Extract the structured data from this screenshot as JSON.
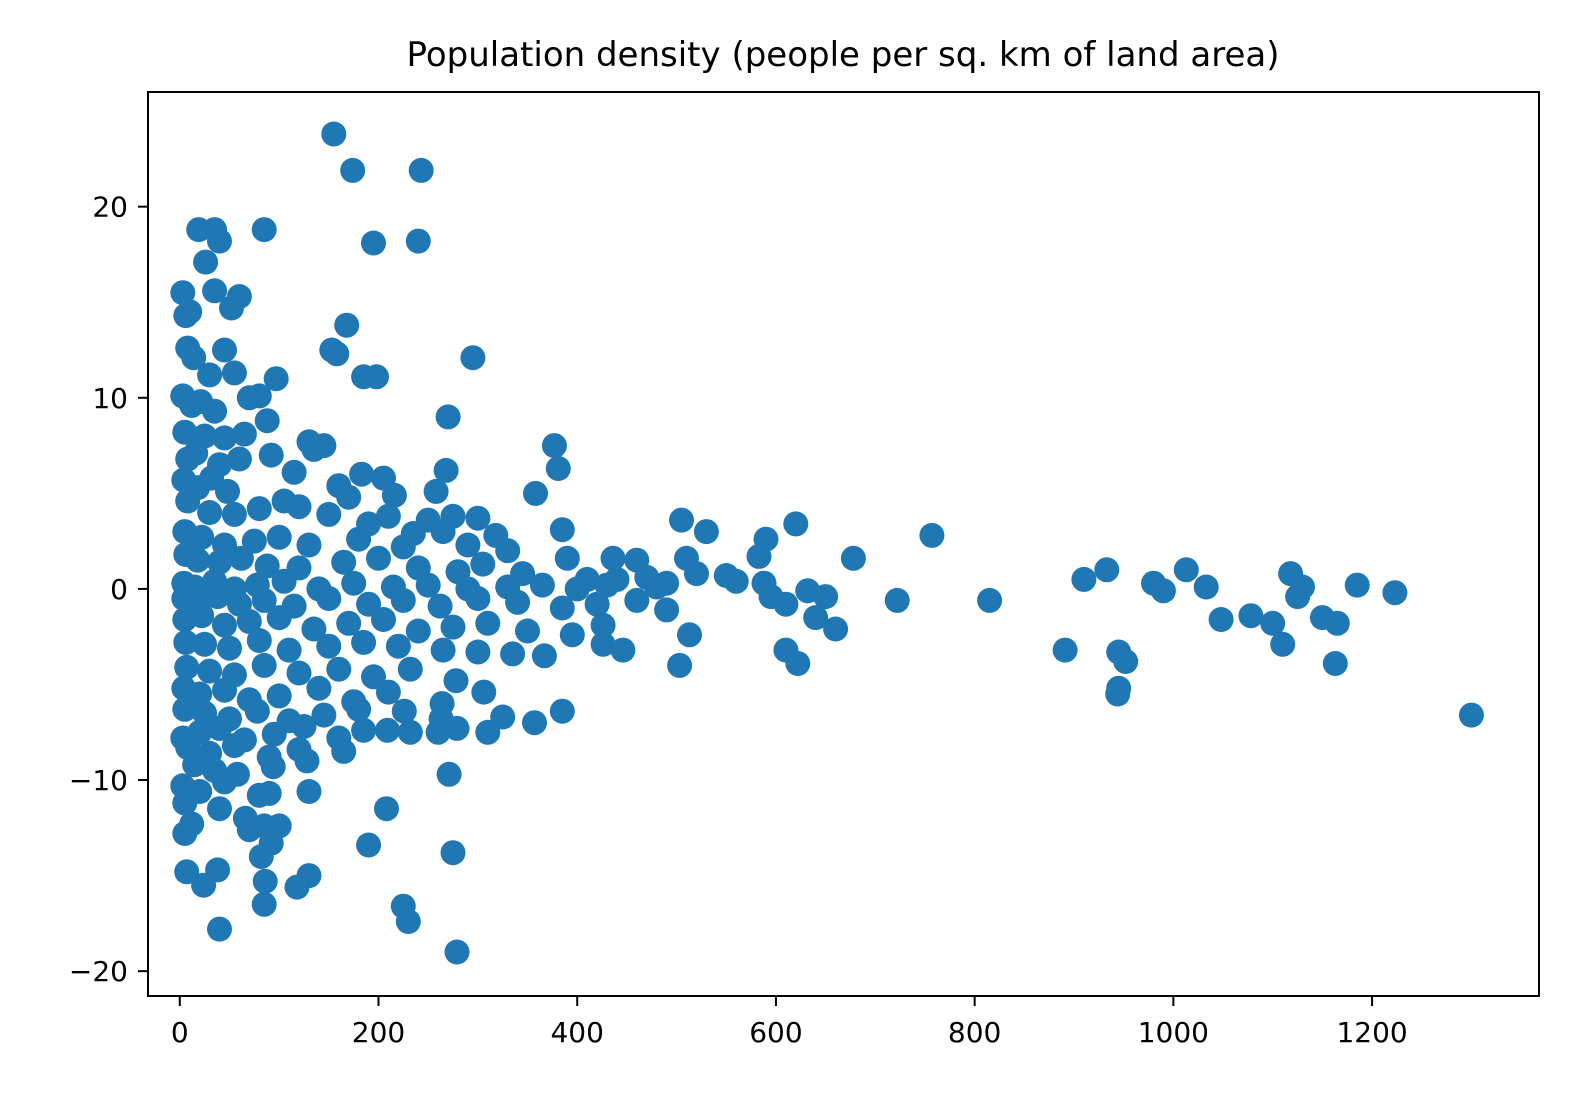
{
  "chart_data": {
    "type": "scatter",
    "title": "Population density (people per sq. km of land area)",
    "xlabel": "",
    "ylabel": "",
    "xlim": [
      -32,
      1368
    ],
    "ylim": [
      -21.3,
      26.0
    ],
    "x_ticks": [
      0,
      200,
      400,
      600,
      800,
      1000,
      1200
    ],
    "y_ticks": [
      -20,
      -10,
      0,
      10,
      20
    ],
    "x_tick_labels": [
      "0",
      "200",
      "400",
      "600",
      "800",
      "1000",
      "1200"
    ],
    "y_tick_labels": [
      "−20",
      "−10",
      "0",
      "10",
      "20"
    ],
    "grid": false,
    "legend": "none",
    "marker_color": "#1f77b4",
    "series": [
      {
        "name": "",
        "points": [
          [
            155,
            23.8
          ],
          [
            174,
            21.9
          ],
          [
            243,
            21.9
          ],
          [
            19,
            18.8
          ],
          [
            35,
            18.8
          ],
          [
            85,
            18.8
          ],
          [
            40,
            18.2
          ],
          [
            195,
            18.1
          ],
          [
            240,
            18.2
          ],
          [
            26,
            17.1
          ],
          [
            3,
            15.5
          ],
          [
            35,
            15.6
          ],
          [
            60,
            15.3
          ],
          [
            52,
            14.7
          ],
          [
            10,
            14.5
          ],
          [
            6,
            14.3
          ],
          [
            168,
            13.8
          ],
          [
            153,
            12.5
          ],
          [
            158,
            12.3
          ],
          [
            295,
            12.1
          ],
          [
            8,
            12.6
          ],
          [
            14,
            12.1
          ],
          [
            45,
            12.5
          ],
          [
            30,
            11.2
          ],
          [
            185,
            11.1
          ],
          [
            198,
            11.1
          ],
          [
            97,
            11.0
          ],
          [
            55,
            11.3
          ],
          [
            3,
            10.1
          ],
          [
            70,
            10.0
          ],
          [
            80,
            10.1
          ],
          [
            21,
            9.8
          ],
          [
            12,
            9.6
          ],
          [
            35,
            9.3
          ],
          [
            270,
            9.0
          ],
          [
            88,
            8.8
          ],
          [
            5,
            8.2
          ],
          [
            25,
            8.0
          ],
          [
            45,
            7.9
          ],
          [
            65,
            8.1
          ],
          [
            130,
            7.7
          ],
          [
            145,
            7.5
          ],
          [
            135,
            7.3
          ],
          [
            377,
            7.5
          ],
          [
            92,
            7.0
          ],
          [
            8,
            6.8
          ],
          [
            16,
            7.1
          ],
          [
            40,
            6.5
          ],
          [
            60,
            6.8
          ],
          [
            268,
            6.2
          ],
          [
            381,
            6.3
          ],
          [
            115,
            6.1
          ],
          [
            183,
            6.0
          ],
          [
            205,
            5.8
          ],
          [
            4,
            5.7
          ],
          [
            18,
            5.3
          ],
          [
            32,
            5.8
          ],
          [
            48,
            5.1
          ],
          [
            160,
            5.4
          ],
          [
            170,
            4.8
          ],
          [
            216,
            4.9
          ],
          [
            258,
            5.1
          ],
          [
            358,
            5.0
          ],
          [
            105,
            4.6
          ],
          [
            120,
            4.3
          ],
          [
            8,
            4.6
          ],
          [
            30,
            4.0
          ],
          [
            55,
            3.9
          ],
          [
            80,
            4.2
          ],
          [
            150,
            3.9
          ],
          [
            190,
            3.4
          ],
          [
            210,
            3.8
          ],
          [
            250,
            3.6
          ],
          [
            275,
            3.8
          ],
          [
            300,
            3.7
          ],
          [
            505,
            3.6
          ],
          [
            530,
            3.0
          ],
          [
            620,
            3.4
          ],
          [
            757,
            2.8
          ],
          [
            385,
            3.1
          ],
          [
            318,
            2.8
          ],
          [
            235,
            2.9
          ],
          [
            265,
            3.0
          ],
          [
            5,
            3.0
          ],
          [
            22,
            2.7
          ],
          [
            45,
            2.3
          ],
          [
            75,
            2.5
          ],
          [
            100,
            2.7
          ],
          [
            130,
            2.3
          ],
          [
            180,
            2.6
          ],
          [
            225,
            2.2
          ],
          [
            290,
            2.3
          ],
          [
            330,
            2.0
          ],
          [
            590,
            2.6
          ],
          [
            583,
            1.7
          ],
          [
            436,
            1.6
          ],
          [
            460,
            1.5
          ],
          [
            390,
            1.6
          ],
          [
            510,
            1.6
          ],
          [
            678,
            1.6
          ],
          [
            6,
            1.8
          ],
          [
            18,
            1.5
          ],
          [
            40,
            1.4
          ],
          [
            62,
            1.6
          ],
          [
            88,
            1.2
          ],
          [
            120,
            1.1
          ],
          [
            165,
            1.4
          ],
          [
            200,
            1.6
          ],
          [
            240,
            1.1
          ],
          [
            280,
            0.9
          ],
          [
            305,
            1.3
          ],
          [
            345,
            0.8
          ],
          [
            410,
            0.5
          ],
          [
            470,
            0.6
          ],
          [
            490,
            0.3
          ],
          [
            520,
            0.8
          ],
          [
            550,
            0.7
          ],
          [
            560,
            0.4
          ],
          [
            588,
            0.3
          ],
          [
            910,
            0.5
          ],
          [
            933,
            1.0
          ],
          [
            980,
            0.3
          ],
          [
            1013,
            1.0
          ],
          [
            1118,
            0.8
          ],
          [
            1185,
            0.2
          ],
          [
            1130,
            0.1
          ],
          [
            4,
            0.3
          ],
          [
            15,
            0.1
          ],
          [
            35,
            0.4
          ],
          [
            55,
            0.0
          ],
          [
            78,
            0.2
          ],
          [
            105,
            0.4
          ],
          [
            140,
            0.0
          ],
          [
            175,
            0.3
          ],
          [
            215,
            0.1
          ],
          [
            250,
            0.2
          ],
          [
            290,
            0.0
          ],
          [
            330,
            0.1
          ],
          [
            365,
            0.2
          ],
          [
            400,
            0.0
          ],
          [
            430,
            0.2
          ],
          [
            440,
            0.5
          ],
          [
            480,
            0.1
          ],
          [
            990,
            -0.1
          ],
          [
            1033,
            0.1
          ],
          [
            1223,
            -0.2
          ],
          [
            4,
            -0.5
          ],
          [
            18,
            -0.7
          ],
          [
            38,
            -0.4
          ],
          [
            60,
            -0.8
          ],
          [
            85,
            -0.6
          ],
          [
            115,
            -0.9
          ],
          [
            150,
            -0.5
          ],
          [
            190,
            -0.8
          ],
          [
            225,
            -0.6
          ],
          [
            262,
            -0.9
          ],
          [
            300,
            -0.5
          ],
          [
            340,
            -0.7
          ],
          [
            385,
            -1.0
          ],
          [
            420,
            -0.8
          ],
          [
            460,
            -0.6
          ],
          [
            490,
            -1.1
          ],
          [
            595,
            -0.4
          ],
          [
            610,
            -0.8
          ],
          [
            632,
            -0.1
          ],
          [
            650,
            -0.4
          ],
          [
            722,
            -0.6
          ],
          [
            815,
            -0.6
          ],
          [
            640,
            -1.5
          ],
          [
            1048,
            -1.6
          ],
          [
            1078,
            -1.4
          ],
          [
            1100,
            -1.8
          ],
          [
            1125,
            -0.4
          ],
          [
            1150,
            -1.5
          ],
          [
            1165,
            -1.8
          ],
          [
            5,
            -1.6
          ],
          [
            22,
            -1.4
          ],
          [
            45,
            -1.9
          ],
          [
            70,
            -1.7
          ],
          [
            100,
            -1.5
          ],
          [
            135,
            -2.1
          ],
          [
            170,
            -1.8
          ],
          [
            205,
            -1.6
          ],
          [
            240,
            -2.2
          ],
          [
            275,
            -2.0
          ],
          [
            310,
            -1.8
          ],
          [
            350,
            -2.2
          ],
          [
            395,
            -2.4
          ],
          [
            426,
            -1.9
          ],
          [
            513,
            -2.4
          ],
          [
            660,
            -2.1
          ],
          [
            6,
            -2.8
          ],
          [
            25,
            -2.9
          ],
          [
            50,
            -3.1
          ],
          [
            80,
            -2.7
          ],
          [
            110,
            -3.2
          ],
          [
            150,
            -3.0
          ],
          [
            185,
            -2.8
          ],
          [
            220,
            -3.0
          ],
          [
            265,
            -3.2
          ],
          [
            300,
            -3.3
          ],
          [
            335,
            -3.4
          ],
          [
            367,
            -3.5
          ],
          [
            426,
            -2.9
          ],
          [
            446,
            -3.2
          ],
          [
            610,
            -3.2
          ],
          [
            622,
            -3.9
          ],
          [
            891,
            -3.2
          ],
          [
            945,
            -3.3
          ],
          [
            952,
            -3.8
          ],
          [
            1110,
            -2.9
          ],
          [
            1163,
            -3.9
          ],
          [
            503,
            -4.0
          ],
          [
            7,
            -4.1
          ],
          [
            30,
            -4.3
          ],
          [
            55,
            -4.5
          ],
          [
            85,
            -4.0
          ],
          [
            120,
            -4.4
          ],
          [
            160,
            -4.2
          ],
          [
            195,
            -4.6
          ],
          [
            232,
            -4.2
          ],
          [
            278,
            -4.8
          ],
          [
            4,
            -5.2
          ],
          [
            20,
            -5.5
          ],
          [
            45,
            -5.3
          ],
          [
            70,
            -5.8
          ],
          [
            100,
            -5.6
          ],
          [
            140,
            -5.2
          ],
          [
            175,
            -5.9
          ],
          [
            210,
            -5.4
          ],
          [
            264,
            -6.0
          ],
          [
            306,
            -5.4
          ],
          [
            945,
            -5.2
          ],
          [
            944,
            -5.5
          ],
          [
            5,
            -6.3
          ],
          [
            25,
            -6.5
          ],
          [
            50,
            -6.8
          ],
          [
            78,
            -6.4
          ],
          [
            110,
            -6.9
          ],
          [
            145,
            -6.6
          ],
          [
            180,
            -6.3
          ],
          [
            226,
            -6.4
          ],
          [
            263,
            -6.8
          ],
          [
            325,
            -6.7
          ],
          [
            385,
            -6.4
          ],
          [
            1300,
            -6.6
          ],
          [
            3,
            -7.8
          ],
          [
            20,
            -7.5
          ],
          [
            40,
            -7.3
          ],
          [
            65,
            -7.9
          ],
          [
            95,
            -7.6
          ],
          [
            125,
            -7.2
          ],
          [
            160,
            -7.8
          ],
          [
            185,
            -7.4
          ],
          [
            209,
            -7.4
          ],
          [
            232,
            -7.5
          ],
          [
            260,
            -7.5
          ],
          [
            279,
            -7.3
          ],
          [
            310,
            -7.5
          ],
          [
            357,
            -7.0
          ],
          [
            8,
            -8.3
          ],
          [
            30,
            -8.6
          ],
          [
            55,
            -8.2
          ],
          [
            90,
            -8.8
          ],
          [
            120,
            -8.4
          ],
          [
            165,
            -8.5
          ],
          [
            15,
            -9.2
          ],
          [
            35,
            -9.5
          ],
          [
            58,
            -9.7
          ],
          [
            94,
            -9.3
          ],
          [
            128,
            -9.0
          ],
          [
            271,
            -9.7
          ],
          [
            3,
            -10.3
          ],
          [
            20,
            -10.6
          ],
          [
            45,
            -10.1
          ],
          [
            80,
            -10.8
          ],
          [
            90,
            -10.7
          ],
          [
            130,
            -10.6
          ],
          [
            5,
            -11.2
          ],
          [
            40,
            -11.5
          ],
          [
            208,
            -11.5
          ],
          [
            12,
            -12.3
          ],
          [
            66,
            -12.0
          ],
          [
            85,
            -12.4
          ],
          [
            100,
            -12.4
          ],
          [
            5,
            -12.8
          ],
          [
            70,
            -12.6
          ],
          [
            82,
            -14.0
          ],
          [
            92,
            -13.3
          ],
          [
            190,
            -13.4
          ],
          [
            275,
            -13.8
          ],
          [
            7,
            -14.8
          ],
          [
            38,
            -14.7
          ],
          [
            130,
            -15.0
          ],
          [
            24,
            -15.5
          ],
          [
            86,
            -15.3
          ],
          [
            118,
            -15.6
          ],
          [
            85,
            -16.5
          ],
          [
            225,
            -16.6
          ],
          [
            230,
            -17.4
          ],
          [
            40,
            -17.8
          ],
          [
            279,
            -19.0
          ]
        ]
      }
    ]
  }
}
